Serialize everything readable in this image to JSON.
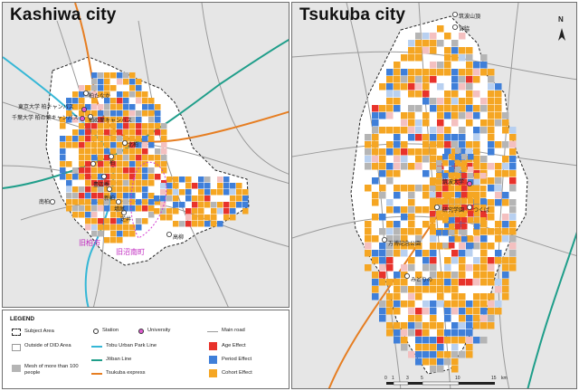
{
  "panels": {
    "kashiwa": {
      "title": "Kashiwa city"
    },
    "tsukuba": {
      "title": "Tsukuba city"
    }
  },
  "kashiwa_labels": {
    "univ1": "東京大学 柏キャンパス",
    "univ2": "千葉大学 柏の葉キャンパス",
    "st_kashiwanoha": "柏の葉キャンパス",
    "st_kashiwatanaka": "柏たなか",
    "st_kashiwa": "柏",
    "st_toyoshiki": "豊四季",
    "st_shintoyoshiki": "新柏",
    "st_masuo": "増尾",
    "st_sakasai": "逆井",
    "st_takayanagi": "高柳",
    "st_kitakashiwa": "北柏",
    "st_minamikashiwa": "南柏",
    "st_shinkashiwa": "新柏",
    "st_hatsuishi": "初石",
    "old_city": "旧柏市",
    "old_town": "旧沼南町"
  },
  "tsukuba_labels": {
    "st_tsukubasan": "筑波山頂",
    "st_miyawaki": "宮脇",
    "st_tsukuba": "つくば",
    "st_kenkyugakuen": "研究学園",
    "st_bampaku": "万博記念公園",
    "st_midorino": "みどりの",
    "univ_tsukuba": "筑波大学"
  },
  "north_arrow": "N",
  "scale_bar": {
    "ticks": [
      "0",
      "1",
      "3",
      "5",
      "10",
      "15"
    ],
    "unit": "km"
  },
  "legend": {
    "title": "LEGEND",
    "subject_area": "Subject Area",
    "outside_did": "Outside of DID Area",
    "mesh_100": "Mesh of more than 100 people",
    "station": "Station",
    "university": "University",
    "tobu": "Tobu Urban Park Line",
    "joban": "Jōban Line",
    "tx": "Tsukuba express",
    "main_road": "Main road",
    "age": "Age Effect",
    "period": "Period Effect",
    "cohort": "Cohort Effect"
  },
  "colors": {
    "age": "#e8322b",
    "period": "#3f7fd9",
    "cohort": "#f5a623",
    "mesh": "#b5b5b5",
    "tobu": "#35b7d6",
    "joban": "#1f9e8a",
    "tx": "#e67e22",
    "road": "#9a9a9a",
    "university": "#e05bd1"
  }
}
